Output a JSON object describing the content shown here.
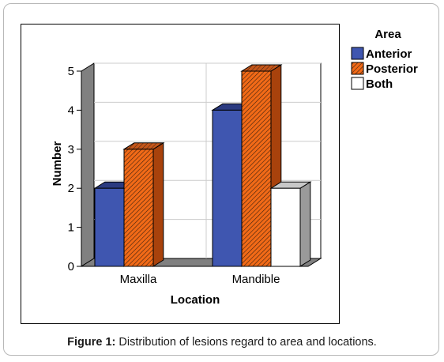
{
  "figure": {
    "caption_label": "Figure 1:",
    "caption_text": " Distribution of lesions regard to area and locations."
  },
  "colors": {
    "anterior": "#3f56b0",
    "anterior_top": "#2a3a80",
    "anterior_side": "#2e4090",
    "posterior": "#f26a17",
    "posterior_top": "#b84a10",
    "posterior_side": "#a8420c",
    "both": "#ffffff",
    "both_top": "#c8c8c8",
    "both_side": "#9a9a9a",
    "wall": "#808080"
  },
  "chart_data": {
    "type": "bar",
    "title": "",
    "xlabel": "Location",
    "ylabel": "Number",
    "ylim": [
      0,
      5
    ],
    "yticks": [
      "0",
      "1",
      "2",
      "3",
      "4",
      "5"
    ],
    "categories": [
      "Maxilla",
      "Mandible"
    ],
    "legend_title": "Area",
    "legend_placement": "right",
    "grid": true,
    "series": [
      {
        "name": "Anterior",
        "values": [
          2,
          4
        ],
        "pattern": "solid"
      },
      {
        "name": "Posterior",
        "values": [
          3,
          5
        ],
        "pattern": "hatched"
      },
      {
        "name": "Both",
        "values": [
          0,
          2
        ],
        "pattern": "solid"
      }
    ]
  }
}
